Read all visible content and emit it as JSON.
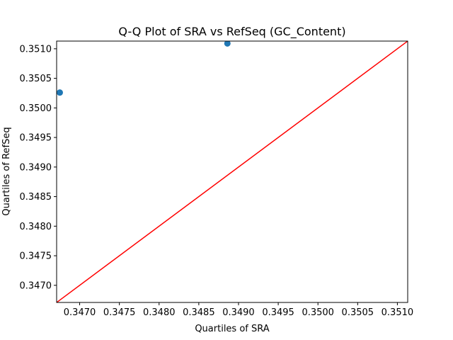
{
  "chart_data": {
    "type": "scatter",
    "title": "Q-Q Plot of SRA vs RefSeq (GC_Content)",
    "xlabel": "Quartiles of SRA",
    "ylabel": "Quartiles of RefSeq",
    "xlim": [
      0.34671,
      0.35113
    ],
    "ylim": [
      0.34671,
      0.35113
    ],
    "xticks": [
      "0.3470",
      "0.3475",
      "0.3480",
      "0.3485",
      "0.3490",
      "0.3495",
      "0.3500",
      "0.3505",
      "0.3510"
    ],
    "yticks": [
      "0.3470",
      "0.3475",
      "0.3480",
      "0.3485",
      "0.3490",
      "0.3495",
      "0.3500",
      "0.3505",
      "0.3510"
    ],
    "points": [
      {
        "x": 0.34675,
        "y": 0.35026
      },
      {
        "x": 0.34886,
        "y": 0.35109
      }
    ],
    "reference_line": {
      "from": [
        0.34671,
        0.34671
      ],
      "to": [
        0.35113,
        0.35113
      ]
    },
    "grid": false,
    "colors": {
      "points": "#1f77b4",
      "line": "#ff0000",
      "axes": "#000000"
    }
  }
}
